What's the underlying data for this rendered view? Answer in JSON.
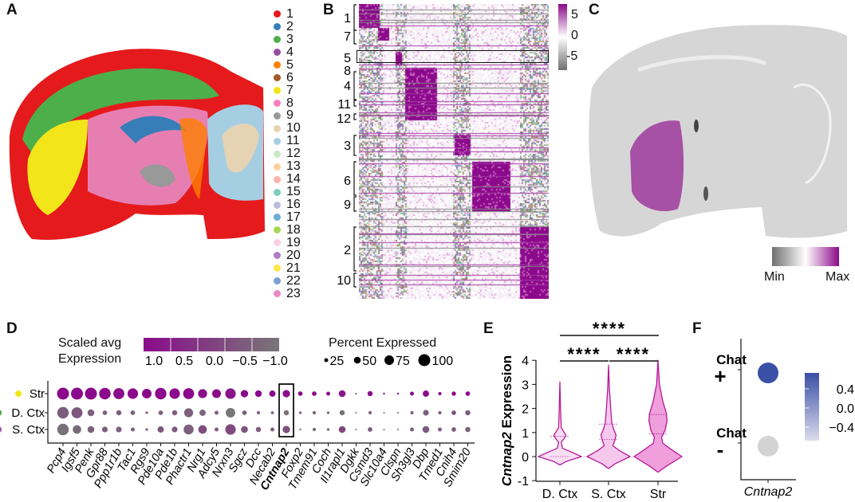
{
  "panels": {
    "a": "A",
    "b": "B",
    "c": "C",
    "d": "D",
    "e": "E",
    "f": "F"
  },
  "panel_a": {
    "legend": [
      {
        "label": "1",
        "color": "#e41a1c"
      },
      {
        "label": "2",
        "color": "#377eb8"
      },
      {
        "label": "3",
        "color": "#4daf4a"
      },
      {
        "label": "4",
        "color": "#984ea3"
      },
      {
        "label": "5",
        "color": "#ff7f00"
      },
      {
        "label": "6",
        "color": "#a65628"
      },
      {
        "label": "7",
        "color": "#f2e51a"
      },
      {
        "label": "8",
        "color": "#f781bf"
      },
      {
        "label": "9",
        "color": "#999999"
      },
      {
        "label": "10",
        "color": "#e5d3b3"
      },
      {
        "label": "11",
        "color": "#a6cee3"
      },
      {
        "label": "12",
        "color": "#c7e9c0"
      },
      {
        "label": "13",
        "color": "#fdd0a2"
      },
      {
        "label": "14",
        "color": "#fbb4ae"
      },
      {
        "label": "15",
        "color": "#80cdc1"
      },
      {
        "label": "16",
        "color": "#bcbddc"
      },
      {
        "label": "17",
        "color": "#6baed6"
      },
      {
        "label": "18",
        "color": "#a6d854"
      },
      {
        "label": "19",
        "color": "#fccde5"
      },
      {
        "label": "20",
        "color": "#b07cc6"
      },
      {
        "label": "21",
        "color": "#ffe84a"
      },
      {
        "label": "22",
        "color": "#7b9ed6"
      },
      {
        "label": "23",
        "color": "#e78ac3"
      }
    ]
  },
  "panel_b": {
    "row_labels": [
      "1",
      "7",
      "5",
      "8",
      "4",
      "11",
      "12",
      "3",
      "6",
      "9",
      "2",
      "10"
    ],
    "highlighted_row": "5",
    "colorbar": {
      "ticks": [
        "5",
        "0",
        "-5"
      ],
      "colors": [
        "#8b0a8b",
        "#ffffff",
        "#707070"
      ]
    }
  },
  "panel_c": {
    "colorbar": {
      "min_label": "Min",
      "max_label": "Max",
      "colors": [
        "#707070",
        "#ffffff",
        "#8b0a8b"
      ]
    }
  },
  "chart_data": [
    {
      "type": "scatter",
      "subtype": "dot-plot",
      "colorbar_title": [
        "Scaled avg",
        "Expression"
      ],
      "colorbar_ticks": [
        "1.0",
        "0.5",
        "0.0",
        "−0.5",
        "−1.0"
      ],
      "color_range": [
        1.0,
        -1.0
      ],
      "colors": {
        "high": "#8b0a8b",
        "low": "#777777"
      },
      "size_title": "Percent Expressed",
      "size_ticks": [
        25,
        50,
        75,
        100
      ],
      "rows": [
        {
          "label": "Str",
          "marker_color": "#f2e51a"
        },
        {
          "label": "D. Ctx",
          "marker_color": "#4daf4a"
        },
        {
          "label": "S. Ctx",
          "marker_color": "#a55eb8"
        }
      ],
      "genes": [
        "Pcp4",
        "Igsf5",
        "Penk",
        "Gpr88",
        "Ppp1r1b",
        "Tac1",
        "Rgs9",
        "Pde10a",
        "Pde1b",
        "Phactr1",
        "Nrg1",
        "Adcy5",
        "Nrxn3",
        "Sgcz",
        "Dcc",
        "Necab2",
        "Cntnap2",
        "Foxp2",
        "Tmem91",
        "Coch",
        "Il1rapl1",
        "Dgkk",
        "Csmd3",
        "Slc10a4",
        "Clspn",
        "Sh3gl3",
        "Dbp",
        "Tmed1",
        "Cnih4",
        "Smim20"
      ],
      "highlighted_gene": "Cntnap2",
      "pct": [
        [
          100,
          100,
          100,
          95,
          90,
          85,
          75,
          95,
          85,
          90,
          70,
          68,
          85,
          55,
          48,
          45,
          55,
          30,
          30,
          25,
          50,
          8,
          35,
          10,
          10,
          25,
          45,
          20,
          28,
          30
        ],
        [
          95,
          90,
          50,
          30,
          35,
          30,
          15,
          30,
          35,
          70,
          45,
          25,
          75,
          30,
          20,
          18,
          35,
          15,
          20,
          15,
          35,
          5,
          20,
          8,
          8,
          20,
          40,
          20,
          30,
          35
        ],
        [
          95,
          65,
          50,
          40,
          40,
          25,
          15,
          45,
          40,
          80,
          65,
          25,
          85,
          50,
          35,
          25,
          55,
          10,
          20,
          15,
          50,
          8,
          30,
          8,
          8,
          25,
          50,
          25,
          30,
          35
        ]
      ],
      "avg": [
        [
          1,
          1,
          1,
          1,
          1,
          1,
          1,
          1,
          1,
          1,
          0.9,
          1,
          0.8,
          1,
          1,
          1,
          0.9,
          1,
          1,
          1,
          0.8,
          1,
          1,
          1,
          1,
          1,
          1,
          1,
          1,
          1
        ],
        [
          -0.5,
          -0.4,
          -0.6,
          -0.6,
          -0.6,
          -0.6,
          -0.6,
          -0.6,
          -0.6,
          -0.6,
          -0.7,
          -0.6,
          -1,
          -0.6,
          -0.6,
          -0.6,
          -0.9,
          -0.5,
          -0.5,
          -0.6,
          -0.9,
          -0.6,
          -0.6,
          -0.6,
          -0.6,
          -0.6,
          -0.6,
          -0.5,
          -0.4,
          -0.5
        ],
        [
          -0.9,
          -0.8,
          -0.6,
          -0.6,
          -0.6,
          -0.6,
          -0.6,
          -0.4,
          -0.5,
          -0.6,
          -0.2,
          -0.6,
          -0.2,
          -0.4,
          -0.5,
          -0.6,
          -0.3,
          -0.6,
          -0.6,
          -0.6,
          -0.1,
          -0.6,
          -0.5,
          -0.6,
          -0.6,
          -0.6,
          -0.5,
          -0.6,
          -0.6,
          -0.6
        ]
      ]
    },
    {
      "type": "violin",
      "ylabel_italic": "Cntnap2",
      "ylabel": "Expression",
      "ylim": [
        -1,
        4
      ],
      "yticks": [
        "4",
        "3",
        "2",
        "1",
        "0",
        "-1"
      ],
      "categories": [
        "D. Ctx",
        "S. Ctx",
        "Str"
      ],
      "fills": [
        "#f8def2",
        "#f5c8ec",
        "#ef9fdb"
      ],
      "stroke": "#b5199a",
      "density": [
        [
          [
            -0.35,
            0
          ],
          [
            -0.2,
            0.3
          ],
          [
            0,
            1
          ],
          [
            0.2,
            0.5
          ],
          [
            0.35,
            0.12
          ],
          [
            0.6,
            0.06
          ],
          [
            0.75,
            0.2
          ],
          [
            0.88,
            0.28
          ],
          [
            1.0,
            0.2
          ],
          [
            1.2,
            0.06
          ],
          [
            2,
            0.03
          ],
          [
            3.1,
            0
          ]
        ],
        [
          [
            -0.5,
            0
          ],
          [
            -0.3,
            0.3
          ],
          [
            0,
            1
          ],
          [
            0.25,
            0.5
          ],
          [
            0.45,
            0.2
          ],
          [
            0.7,
            0.3
          ],
          [
            0.9,
            0.35
          ],
          [
            1.1,
            0.25
          ],
          [
            1.4,
            0.15
          ],
          [
            2,
            0.1
          ],
          [
            2.8,
            0.04
          ],
          [
            3.8,
            0
          ]
        ],
        [
          [
            -0.65,
            0
          ],
          [
            -0.4,
            0.35
          ],
          [
            0,
            1
          ],
          [
            0.3,
            0.55
          ],
          [
            0.55,
            0.2
          ],
          [
            0.8,
            0.15
          ],
          [
            1.1,
            0.3
          ],
          [
            1.5,
            0.38
          ],
          [
            1.8,
            0.35
          ],
          [
            2.3,
            0.2
          ],
          [
            3,
            0.06
          ],
          [
            4,
            0
          ]
        ]
      ],
      "quartile_lines": [
        [
          0,
          0.85
        ],
        [
          0.72,
          1.35
        ],
        [
          0.95,
          1.75
        ]
      ],
      "significance": [
        {
          "from": "D. Ctx",
          "to": "Str",
          "label": "****"
        },
        {
          "from": "D. Ctx",
          "to": "S. Ctx",
          "label": "****"
        },
        {
          "from": "S. Ctx",
          "to": "Str",
          "label": "****"
        }
      ]
    },
    {
      "type": "scatter",
      "subtype": "dot-plot",
      "rows": [
        {
          "label": "Chat",
          "sign": "+",
          "value": 0.6,
          "color": "#3a4fa6"
        },
        {
          "label": "Chat",
          "sign": "-",
          "value": -0.6,
          "color": "#d3d3d3"
        }
      ],
      "xlabel_italic": "Cntnap2",
      "colorbar_ticks": [
        "0.4",
        "0.0",
        "−0.4"
      ],
      "colorbar_colors": [
        "#3a4fa6",
        "#dcdcec"
      ]
    }
  ]
}
